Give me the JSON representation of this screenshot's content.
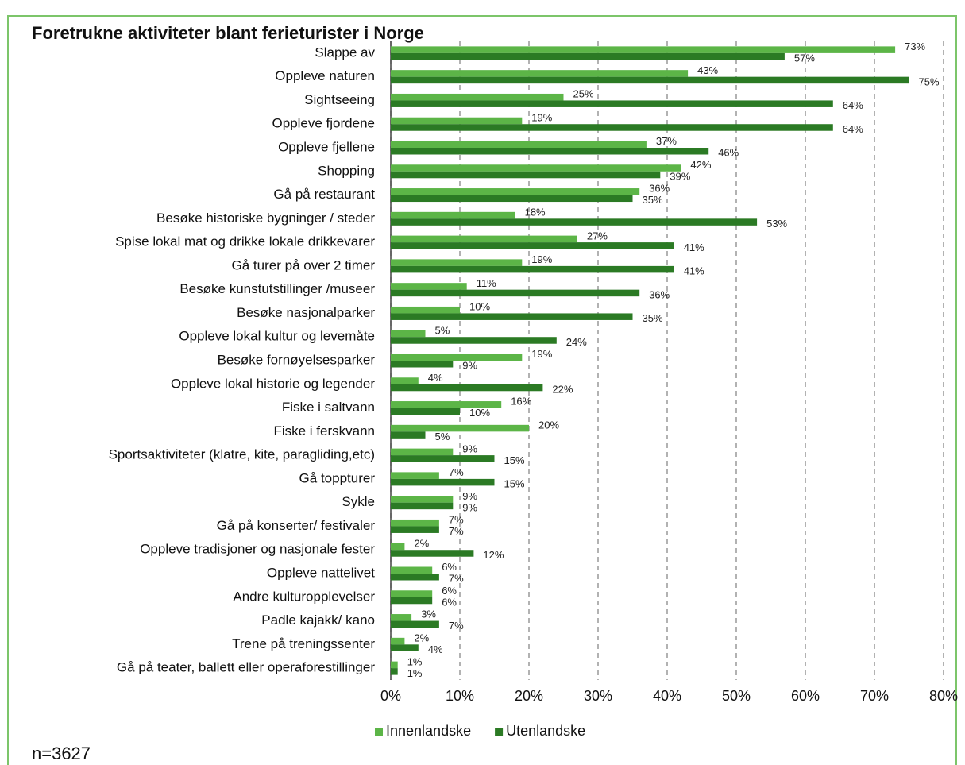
{
  "chart_data": {
    "type": "bar",
    "orientation": "horizontal",
    "title": "Foretrukne aktiviteter blant ferieturister i Norge",
    "note": "n=3627",
    "categories": [
      "Slappe av",
      "Oppleve naturen",
      "Sightseeing",
      "Oppleve fjordene",
      "Oppleve fjellene",
      "Shopping",
      "Gå på restaurant",
      "Besøke historiske bygninger / steder",
      "Spise lokal mat og drikke lokale drikkevarer",
      "Gå turer på over 2 timer",
      "Besøke kunstutstillinger /museer",
      "Besøke nasjonalparker",
      "Oppleve lokal kultur og levemåte",
      "Besøke fornøyelsesparker",
      "Oppleve lokal historie og legender",
      "Fiske i saltvann",
      "Fiske i ferskvann",
      "Sportsaktiviteter (klatre, kite, paragliding,etc)",
      "Gå toppturer",
      "Sykle",
      "Gå på konserter/ festivaler",
      "Oppleve tradisjoner og nasjonale fester",
      "Oppleve nattelivet",
      "Andre kulturopplevelser",
      "Padle kajakk/ kano",
      "Trene på treningssenter",
      "Gå på teater, ballett eller operaforestillinger"
    ],
    "series": [
      {
        "name": "Innenlandske",
        "color": "#5cb547",
        "values": [
          73,
          43,
          25,
          19,
          37,
          42,
          36,
          18,
          27,
          19,
          11,
          10,
          5,
          19,
          4,
          16,
          20,
          9,
          7,
          9,
          7,
          2,
          6,
          6,
          3,
          2,
          1
        ],
        "value_labels": [
          "73%",
          "43%",
          "25%",
          "19%",
          "37%",
          "42%",
          "36%",
          "18%",
          "27%",
          "19%",
          "11%",
          "10%",
          "5%",
          "19%",
          "4%",
          "16%",
          "20%",
          "9%",
          "7%",
          "9%",
          "7%",
          "2%",
          "6%",
          "6%",
          "3%",
          "2%",
          "1%"
        ]
      },
      {
        "name": "Utenlandske",
        "color": "#2b7a24",
        "values": [
          57,
          75,
          64,
          64,
          46,
          39,
          35,
          53,
          41,
          41,
          36,
          35,
          24,
          9,
          22,
          10,
          5,
          15,
          15,
          9,
          7,
          12,
          7,
          6,
          7,
          4,
          1
        ],
        "value_labels": [
          "57%",
          "75%",
          "64%",
          "64%",
          "46%",
          "39%",
          "35%",
          "53%",
          "41%",
          "41%",
          "36%",
          "35%",
          "24%",
          "9%",
          "22%",
          "10%",
          "5%",
          "15%",
          "15%",
          "9%",
          "7%",
          "12%",
          "7%",
          "6%",
          "7%",
          "4%",
          "1%"
        ]
      }
    ],
    "xlim": [
      0,
      80
    ],
    "xticks": [
      {
        "value": 0,
        "label": "0%"
      },
      {
        "value": 10,
        "label": "10%"
      },
      {
        "value": 20,
        "label": "20%"
      },
      {
        "value": 30,
        "label": "30%"
      },
      {
        "value": 40,
        "label": "40%"
      },
      {
        "value": 50,
        "label": "50%"
      },
      {
        "value": 60,
        "label": "60%"
      },
      {
        "value": 70,
        "label": "70%"
      },
      {
        "value": 80,
        "label": "80%"
      }
    ],
    "grid": true,
    "legend": "bottom"
  }
}
